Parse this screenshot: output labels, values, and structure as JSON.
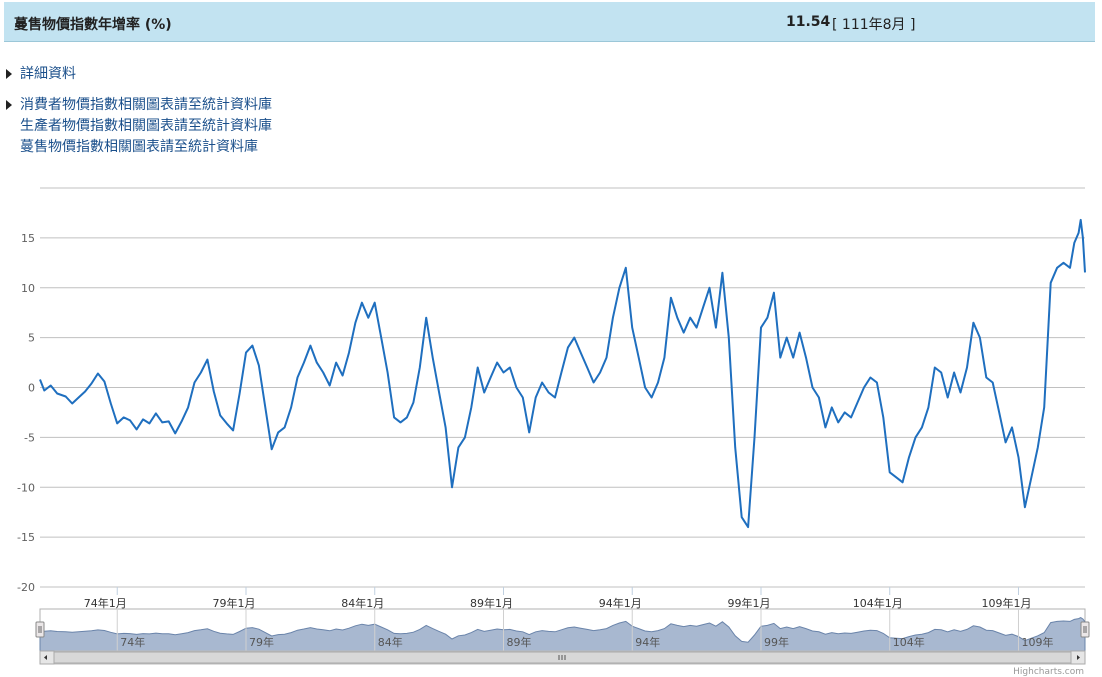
{
  "header": {
    "title": "蔓售物價指數年增率 (%)",
    "value": "11.54",
    "period": "[ 111年8月 ]"
  },
  "links": {
    "detail": "詳細資料",
    "related": [
      "消費者物價指數相關圖表請至統計資料庫",
      "生產者物價指數相關圖表請至統計資料庫",
      "蔓售物價指數相關圖表請至統計資料庫"
    ]
  },
  "credit": "Highcharts.com",
  "chart_data": {
    "type": "line",
    "x_unit": "ROC year (民國) + month",
    "ylim": [
      -20,
      20
    ],
    "yticks": [
      15,
      10,
      5,
      0,
      -5,
      -10,
      -15,
      -20
    ],
    "xticks": [
      "74年1月",
      "79年1月",
      "84年1月",
      "89年1月",
      "94年1月",
      "99年1月",
      "104年1月",
      "109年1月"
    ],
    "navigator_ticks": [
      "74年",
      "79年",
      "84年",
      "89年",
      "94年",
      "99年",
      "104年",
      "109年"
    ],
    "x_range": [
      "71年1月",
      "111年8月"
    ],
    "grid": true,
    "line_color": "#1f6fbf",
    "series": [
      {
        "points": [
          [
            "71年1",
            0.8
          ],
          [
            "71年3",
            -0.3
          ],
          [
            "71年6",
            0.2
          ],
          [
            "71年9",
            -0.6
          ],
          [
            "72年1",
            -0.9
          ],
          [
            "72年4",
            -1.6
          ],
          [
            "72年7",
            -1.0
          ],
          [
            "72年10",
            -0.4
          ],
          [
            "73年1",
            0.4
          ],
          [
            "73年4",
            1.4
          ],
          [
            "73年7",
            0.6
          ],
          [
            "73年10",
            -1.6
          ],
          [
            "74年1",
            -3.6
          ],
          [
            "74年4",
            -3.0
          ],
          [
            "74年7",
            -3.3
          ],
          [
            "74年10",
            -4.2
          ],
          [
            "75年1",
            -3.2
          ],
          [
            "75年4",
            -3.6
          ],
          [
            "75年7",
            -2.6
          ],
          [
            "75年10",
            -3.5
          ],
          [
            "76年1",
            -3.4
          ],
          [
            "76年4",
            -4.6
          ],
          [
            "76年7",
            -3.4
          ],
          [
            "76年10",
            -2.0
          ],
          [
            "77年1",
            0.5
          ],
          [
            "77年4",
            1.5
          ],
          [
            "77年7",
            2.8
          ],
          [
            "77年10",
            -0.4
          ],
          [
            "78年1",
            -2.8
          ],
          [
            "78年4",
            -3.6
          ],
          [
            "78年7",
            -4.3
          ],
          [
            "78年10",
            -0.6
          ],
          [
            "79年1",
            3.5
          ],
          [
            "79年4",
            4.2
          ],
          [
            "79年7",
            2.2
          ],
          [
            "79年10",
            -2.0
          ],
          [
            "80年1",
            -6.2
          ],
          [
            "80年4",
            -4.5
          ],
          [
            "80年7",
            -4.0
          ],
          [
            "80年10",
            -2.0
          ],
          [
            "81年1",
            1.0
          ],
          [
            "81年4",
            2.5
          ],
          [
            "81年7",
            4.2
          ],
          [
            "81年10",
            2.5
          ],
          [
            "82年1",
            1.5
          ],
          [
            "82年4",
            0.2
          ],
          [
            "82年7",
            2.5
          ],
          [
            "82年10",
            1.2
          ],
          [
            "83年1",
            3.5
          ],
          [
            "83年4",
            6.5
          ],
          [
            "83年7",
            8.5
          ],
          [
            "83年10",
            7.0
          ],
          [
            "84年1",
            8.5
          ],
          [
            "84年4",
            5.0
          ],
          [
            "84年7",
            1.5
          ],
          [
            "84年10",
            -3.0
          ],
          [
            "85年1",
            -3.5
          ],
          [
            "85年4",
            -3.0
          ],
          [
            "85年7",
            -1.5
          ],
          [
            "85年10",
            2.0
          ],
          [
            "86年1",
            7.0
          ],
          [
            "86年4",
            3.0
          ],
          [
            "86年7",
            -0.5
          ],
          [
            "86年10",
            -4.0
          ],
          [
            "87年1",
            -10.0
          ],
          [
            "87年4",
            -6.0
          ],
          [
            "87年7",
            -5.0
          ],
          [
            "87年10",
            -2.0
          ],
          [
            "88年1",
            2.0
          ],
          [
            "88年4",
            -0.5
          ],
          [
            "88年7",
            1.0
          ],
          [
            "88年10",
            2.5
          ],
          [
            "89年1",
            1.5
          ],
          [
            "89年4",
            2.0
          ],
          [
            "89年7",
            0.0
          ],
          [
            "89年10",
            -1.0
          ],
          [
            "90年1",
            -4.5
          ],
          [
            "90年4",
            -1.0
          ],
          [
            "90年7",
            0.5
          ],
          [
            "90年10",
            -0.5
          ],
          [
            "91年1",
            -1.0
          ],
          [
            "91年4",
            1.5
          ],
          [
            "91年7",
            4.0
          ],
          [
            "91年10",
            5.0
          ],
          [
            "92年1",
            3.5
          ],
          [
            "92年4",
            2.0
          ],
          [
            "92年7",
            0.5
          ],
          [
            "92年10",
            1.5
          ],
          [
            "93年1",
            3.0
          ],
          [
            "93年4",
            7.0
          ],
          [
            "93年7",
            10.0
          ],
          [
            "93年10",
            12.0
          ],
          [
            "94年1",
            6.0
          ],
          [
            "94年4",
            3.0
          ],
          [
            "94年7",
            0.0
          ],
          [
            "94年10",
            -1.0
          ],
          [
            "95年1",
            0.5
          ],
          [
            "95年4",
            3.0
          ],
          [
            "95年7",
            9.0
          ],
          [
            "95年10",
            7.0
          ],
          [
            "96年1",
            5.5
          ],
          [
            "96年4",
            7.0
          ],
          [
            "96年7",
            6.0
          ],
          [
            "96年10",
            8.0
          ],
          [
            "97年1",
            10.0
          ],
          [
            "97年4",
            6.0
          ],
          [
            "97年7",
            11.5
          ],
          [
            "97年10",
            5.0
          ],
          [
            "98年1",
            -6.0
          ],
          [
            "98年4",
            -13.0
          ],
          [
            "98年7",
            -14.0
          ],
          [
            "98年10",
            -5.0
          ],
          [
            "99年1",
            6.0
          ],
          [
            "99年4",
            7.0
          ],
          [
            "99年7",
            9.5
          ],
          [
            "99年10",
            3.0
          ],
          [
            "100年1",
            5.0
          ],
          [
            "100年4",
            3.0
          ],
          [
            "100年7",
            5.5
          ],
          [
            "100年10",
            3.0
          ],
          [
            "101年1",
            0.0
          ],
          [
            "101年4",
            -1.0
          ],
          [
            "101年7",
            -4.0
          ],
          [
            "101年10",
            -2.0
          ],
          [
            "102年1",
            -3.5
          ],
          [
            "102年4",
            -2.5
          ],
          [
            "102年7",
            -3.0
          ],
          [
            "102年10",
            -1.5
          ],
          [
            "103年1",
            0.0
          ],
          [
            "103年4",
            1.0
          ],
          [
            "103年7",
            0.5
          ],
          [
            "103年10",
            -3.0
          ],
          [
            "104年1",
            -8.5
          ],
          [
            "104年4",
            -9.0
          ],
          [
            "104年7",
            -9.5
          ],
          [
            "104年10",
            -7.0
          ],
          [
            "105年1",
            -5.0
          ],
          [
            "105年4",
            -4.0
          ],
          [
            "105年7",
            -2.0
          ],
          [
            "105年10",
            2.0
          ],
          [
            "106年1",
            1.5
          ],
          [
            "106年4",
            -1.0
          ],
          [
            "106年7",
            1.5
          ],
          [
            "106年10",
            -0.5
          ],
          [
            "107年1",
            2.0
          ],
          [
            "107年4",
            6.5
          ],
          [
            "107年7",
            5.0
          ],
          [
            "107年10",
            1.0
          ],
          [
            "108年1",
            0.5
          ],
          [
            "108年4",
            -2.5
          ],
          [
            "108年7",
            -5.5
          ],
          [
            "108年10",
            -4.0
          ],
          [
            "109年1",
            -7.0
          ],
          [
            "109年4",
            -12.0
          ],
          [
            "109年7",
            -9.0
          ],
          [
            "109年10",
            -6.0
          ],
          [
            "110年1",
            -2.0
          ],
          [
            "110年4",
            10.5
          ],
          [
            "110年7",
            12.0
          ],
          [
            "110年10",
            12.5
          ],
          [
            "111年1",
            12.0
          ],
          [
            "111年3",
            14.5
          ],
          [
            "111年5",
            15.5
          ],
          [
            "111年6",
            16.8
          ],
          [
            "111年7",
            15.0
          ],
          [
            "111年8",
            11.54
          ]
        ]
      }
    ]
  }
}
